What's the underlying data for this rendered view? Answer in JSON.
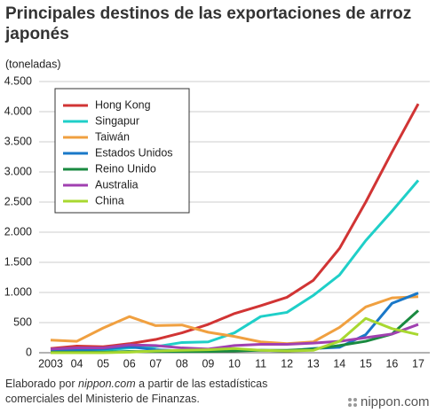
{
  "chart_data": {
    "type": "line",
    "title": "Principales destinos de las exportaciones de arroz japonés",
    "y_label": "(toneladas)",
    "categories": [
      "2003",
      "04",
      "05",
      "06",
      "07",
      "08",
      "09",
      "10",
      "11",
      "12",
      "13",
      "14",
      "15",
      "16",
      "17"
    ],
    "series": [
      {
        "name": "Hong Kong",
        "color": "#d13434",
        "values": [
          70,
          110,
          100,
          150,
          220,
          330,
          470,
          650,
          780,
          920,
          1200,
          1730,
          2500,
          3330,
          4130
        ]
      },
      {
        "name": "Singapur",
        "color": "#1fcfc8",
        "values": [
          40,
          40,
          40,
          80,
          100,
          170,
          180,
          330,
          600,
          670,
          950,
          1290,
          1860,
          2350,
          2860
        ]
      },
      {
        "name": "Taiwán",
        "color": "#f0a040",
        "values": [
          210,
          190,
          410,
          600,
          450,
          460,
          340,
          270,
          180,
          150,
          180,
          420,
          760,
          910,
          930
        ]
      },
      {
        "name": "Estados Unidos",
        "color": "#1a78c8",
        "values": [
          30,
          40,
          60,
          100,
          50,
          30,
          30,
          40,
          40,
          30,
          70,
          90,
          300,
          820,
          990
        ]
      },
      {
        "name": "Reino Unido",
        "color": "#1a8a40",
        "values": [
          10,
          10,
          10,
          20,
          20,
          20,
          20,
          30,
          40,
          40,
          60,
          120,
          190,
          310,
          700
        ]
      },
      {
        "name": "Australia",
        "color": "#a040b0",
        "values": [
          60,
          80,
          80,
          130,
          120,
          80,
          60,
          120,
          140,
          140,
          160,
          190,
          250,
          310,
          470
        ]
      },
      {
        "name": "China",
        "color": "#a8d830",
        "values": [
          0,
          0,
          0,
          10,
          30,
          40,
          50,
          70,
          40,
          30,
          40,
          190,
          570,
          400,
          300
        ]
      }
    ],
    "ylim": [
      0,
      4500
    ],
    "yticks": [
      0,
      500,
      {
        "value": 1000,
        "label": "1.000"
      },
      {
        "value": 1500,
        "label": "1.500"
      },
      {
        "value": 2000,
        "label": "2.000"
      },
      {
        "value": 2500,
        "label": "2.500"
      },
      {
        "value": 3000,
        "label": "3.000"
      },
      {
        "value": 3500,
        "label": "3.500"
      },
      {
        "value": 4000,
        "label": "4.000"
      },
      {
        "value": 4500,
        "label": "4.500"
      }
    ],
    "grid": true,
    "legend": "upper-left",
    "source": {
      "prefix": "Elaborado por",
      "site": "nippon.com",
      "rest": "a partir de las estadísticas comerciales del Ministerio de Finanzas."
    },
    "logo": "nippon.com"
  }
}
